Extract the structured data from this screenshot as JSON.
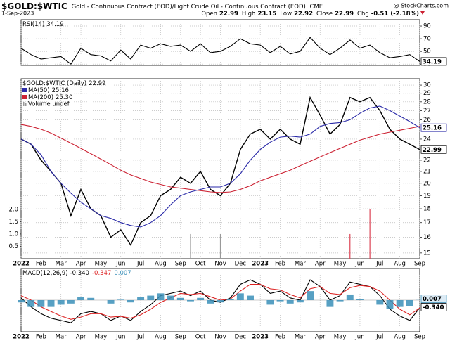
{
  "header": {
    "symbol": "$GOLD:$WTIC",
    "name": "Gold - Continuous Contract (EOD)/Light Crude Oil - Continuous Contract (EOD)",
    "exchange": "CME",
    "source": "@ StockCharts.com",
    "date": "1-Sep-2023",
    "quote": [
      {
        "label": "Open",
        "value": "22.99"
      },
      {
        "label": "High",
        "value": "23.15"
      },
      {
        "label": "Low",
        "value": "22.92"
      },
      {
        "label": "Close",
        "value": "22.99"
      },
      {
        "label": "Chg",
        "value": "-0.51 (-2.18%)"
      }
    ]
  },
  "chart_data": [
    {
      "type": "line",
      "ylim": [
        28,
        100
      ],
      "yticks": [
        30,
        50,
        70,
        90
      ],
      "grid": true,
      "series": [
        {
          "name": "RSI(14)",
          "color": "#000000",
          "values": [
            55,
            45,
            38,
            40,
            42,
            30,
            55,
            45,
            43,
            35,
            52,
            38,
            60,
            55,
            62,
            58,
            60,
            50,
            62,
            48,
            50,
            58,
            70,
            62,
            60,
            48,
            58,
            46,
            50,
            72,
            55,
            45,
            55,
            68,
            55,
            60,
            48,
            40,
            42,
            45,
            34.19
          ]
        }
      ]
    },
    {
      "type": "line",
      "log": true,
      "ylim": [
        14.65,
        30.8
      ],
      "yticks": [
        15,
        16,
        17,
        18,
        19,
        20,
        21,
        22,
        24,
        26,
        27,
        28,
        29,
        30
      ],
      "grid": true,
      "series": [
        {
          "name": "$GOLD:$WTIC (Daily)",
          "color": "#000000",
          "values": [
            24,
            23.5,
            22,
            21,
            20,
            17.5,
            19.5,
            18,
            17.5,
            16,
            16.5,
            15.5,
            17,
            17.5,
            19,
            19.5,
            20.5,
            20,
            21,
            19.5,
            19,
            20,
            23,
            24.5,
            25,
            24,
            25,
            24,
            23.5,
            28.5,
            26.5,
            24.5,
            25.5,
            28.5,
            28,
            28.5,
            27,
            25,
            24,
            23.5,
            22.99
          ]
        },
        {
          "name": "MA(50)",
          "color": "#2a2aa8",
          "values": [
            24,
            23.5,
            22.5,
            21,
            20,
            19.2,
            18.5,
            18,
            17.5,
            17.3,
            17,
            16.8,
            16.7,
            17,
            17.5,
            18.3,
            19,
            19.3,
            19.5,
            19.7,
            19.7,
            20,
            20.8,
            22,
            23,
            23.7,
            24.2,
            24.3,
            24.2,
            24.5,
            25.3,
            25.6,
            25.7,
            26,
            26.7,
            27.3,
            27.5,
            27,
            26.4,
            25.8,
            25.16
          ]
        },
        {
          "name": "MA(200)",
          "color": "#cc2233",
          "last_label": "25.30",
          "values": [
            25.5,
            25.3,
            25,
            24.6,
            24.1,
            23.6,
            23.1,
            22.6,
            22.1,
            21.6,
            21.1,
            20.7,
            20.4,
            20.1,
            19.9,
            19.7,
            19.6,
            19.5,
            19.4,
            19.3,
            19.25,
            19.3,
            19.5,
            19.8,
            20.2,
            20.5,
            20.8,
            21.1,
            21.5,
            21.9,
            22.3,
            22.7,
            23.1,
            23.5,
            23.9,
            24.2,
            24.5,
            24.7,
            24.9,
            25.1,
            25.3
          ]
        }
      ],
      "volume": {
        "name": "Volume undef",
        "ylim": [
          0,
          7.3
        ],
        "yticks": [
          {
            "value": 2,
            "label": "2.0"
          },
          1.5,
          {
            "value": 1,
            "label": "1.0"
          },
          0.5
        ],
        "bars": [
          {
            "x": 17,
            "value": 1.0,
            "color": "#999999"
          },
          {
            "x": 20,
            "value": 1.0,
            "color": "#999999"
          },
          {
            "x": 33,
            "value": 1.0,
            "color": "#dd4455"
          },
          {
            "x": 35,
            "value": 2.0,
            "color": "#dd4455"
          }
        ]
      },
      "x_labels": [
        "2022",
        "Feb",
        "Mar",
        "Apr",
        "May",
        "Jun",
        "Jul",
        "Aug",
        "Sep",
        "Oct",
        "Nov",
        "Dec",
        "2023",
        "Feb",
        "Mar",
        "Apr",
        "May",
        "Jun",
        "Jul",
        "Aug",
        "Sep"
      ]
    },
    {
      "type": "line",
      "ylim": [
        -1.4,
        1.4
      ],
      "series": [
        {
          "name": "MACD(12,26,9)",
          "color": "#000000",
          "last_label": "-0.340",
          "values": [
            0.1,
            -0.3,
            -0.6,
            -0.8,
            -0.9,
            -1.0,
            -0.6,
            -0.5,
            -0.6,
            -0.9,
            -0.7,
            -0.9,
            -0.5,
            -0.2,
            0.2,
            0.3,
            0.4,
            0.2,
            0.4,
            0.0,
            -0.1,
            0.1,
            0.7,
            0.9,
            0.7,
            0.3,
            0.4,
            0.1,
            0.0,
            0.9,
            0.6,
            0.0,
            0.2,
            0.8,
            0.7,
            0.6,
            0.2,
            -0.4,
            -0.7,
            -0.9,
            -0.34
          ]
        },
        {
          "color": "#dd2222",
          "values": [
            0.2,
            0.0,
            -0.3,
            -0.5,
            -0.7,
            -0.85,
            -0.75,
            -0.6,
            -0.6,
            -0.75,
            -0.72,
            -0.8,
            -0.65,
            -0.4,
            -0.1,
            0.1,
            0.3,
            0.25,
            0.3,
            0.15,
            0.0,
            0.05,
            0.4,
            0.7,
            0.7,
            0.5,
            0.45,
            0.25,
            0.1,
            0.5,
            0.6,
            0.3,
            0.25,
            0.55,
            0.65,
            0.6,
            0.4,
            0.0,
            -0.4,
            -0.65,
            -0.347
          ]
        },
        {
          "color": "#3a8fb8",
          "type": "bar",
          "values": [
            -0.1,
            -0.3,
            -0.3,
            -0.3,
            -0.2,
            -0.15,
            0.15,
            0.1,
            0,
            -0.15,
            0.02,
            -0.1,
            0.15,
            0.2,
            0.3,
            0.2,
            0.1,
            -0.05,
            0.1,
            -0.15,
            -0.1,
            0.05,
            0.3,
            0.2,
            0,
            -0.2,
            -0.05,
            -0.15,
            -0.1,
            0.4,
            0,
            -0.3,
            -0.05,
            0.25,
            0.05,
            0,
            -0.2,
            -0.4,
            -0.3,
            -0.25,
            0.007
          ]
        }
      ],
      "x_labels": [
        "2022",
        "Feb",
        "Mar",
        "Apr",
        "May",
        "Jun",
        "Jul",
        "Aug",
        "Sep",
        "Oct",
        "Nov",
        "Dec",
        "2023",
        "Feb",
        "Mar",
        "Apr",
        "May",
        "Jun",
        "Jul",
        "Aug",
        "Sep"
      ]
    }
  ]
}
